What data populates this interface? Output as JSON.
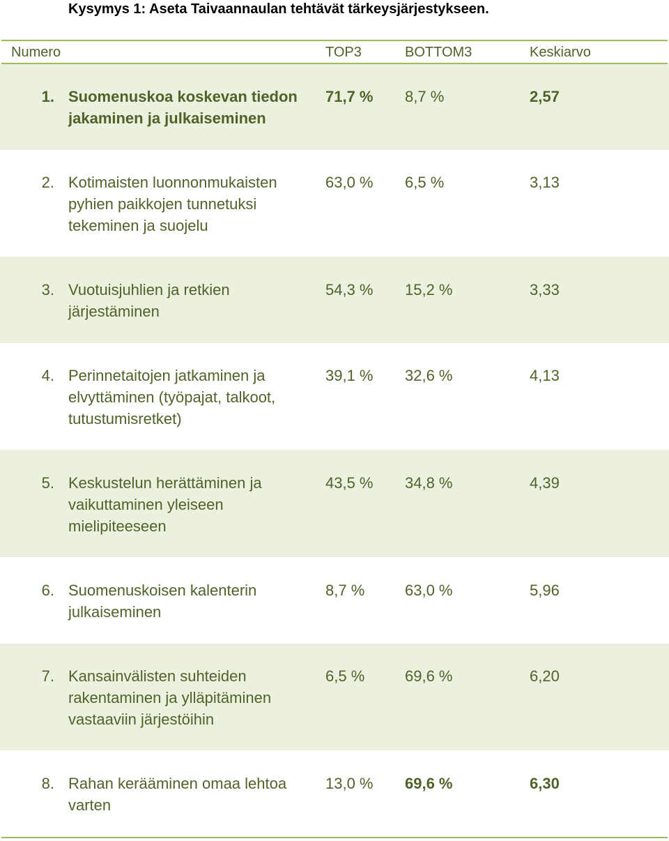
{
  "title": "Kysymys 1: Aseta Taivaannaulan tehtävät tärkeysjärjestykseen.",
  "columns": {
    "number": "Numero",
    "top3": "TOP3",
    "bottom3": "BOTTOM3",
    "average": "Keskiarvo"
  },
  "rows": [
    {
      "num": "1.",
      "label": "Suomenuskoa koskevan tiedon jakaminen ja julkaiseminen",
      "top3": "71,7 %",
      "bottom3": "8,7 %",
      "avg": "2,57"
    },
    {
      "num": "2.",
      "label": "Kotimaisten luonnonmukaisten pyhien paikkojen tunnetuksi tekeminen ja suojelu",
      "top3": "63,0 %",
      "bottom3": "6,5 %",
      "avg": "3,13"
    },
    {
      "num": "3.",
      "label": "Vuotuisjuhlien ja retkien järjestäminen",
      "top3": "54,3 %",
      "bottom3": "15,2 %",
      "avg": "3,33"
    },
    {
      "num": "4.",
      "label": "Perinnetaitojen jatkaminen ja elvyttäminen (työpajat, talkoot, tutustumisretket)",
      "top3": "39,1 %",
      "bottom3": "32,6 %",
      "avg": "4,13"
    },
    {
      "num": "5.",
      "label": "Keskustelun herättäminen ja vaikuttaminen yleiseen mielipiteeseen",
      "top3": "43,5 %",
      "bottom3": "34,8 %",
      "avg": "4,39"
    },
    {
      "num": "6.",
      "label": "Suomenuskoisen kalenterin julkaiseminen",
      "top3": "8,7 %",
      "bottom3": "63,0 %",
      "avg": "5,96"
    },
    {
      "num": "7.",
      "label": "Kansainvälisten suhteiden rakentaminen ja ylläpitäminen vastaaviin järjestöihin",
      "top3": "6,5 %",
      "bottom3": "69,6 %",
      "avg": "6,20"
    },
    {
      "num": "8.",
      "label": "Rahan kerääminen omaa lehtoa varten",
      "top3": "13,0 %",
      "bottom3": "69,6 %",
      "avg": "6,30"
    }
  ],
  "colors": {
    "accent": "#9bbb59",
    "shade": "#ebf1de",
    "text": "#4f6228"
  }
}
